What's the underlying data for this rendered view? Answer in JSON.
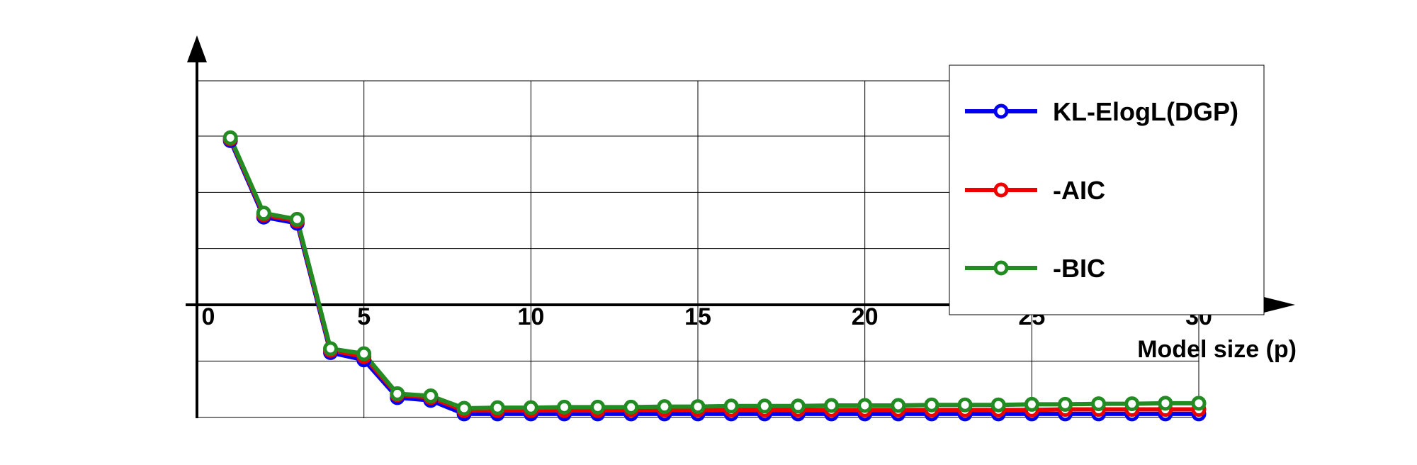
{
  "chart_data": {
    "type": "line",
    "title": "",
    "xlabel": "Model size (p)",
    "ylabel": "",
    "xlim": [
      0,
      31.5
    ],
    "ylim": [
      -2,
      4
    ],
    "x_ticks": [
      0,
      5,
      10,
      15,
      20,
      25,
      30
    ],
    "x_tick_labels": [
      "0",
      "5",
      "10",
      "15",
      "20",
      "25",
      "30"
    ],
    "grid": true,
    "legend_position": "top-right",
    "x": [
      1,
      2,
      3,
      4,
      5,
      6,
      7,
      8,
      9,
      10,
      11,
      12,
      13,
      14,
      15,
      16,
      17,
      18,
      19,
      20,
      21,
      22,
      23,
      24,
      25,
      26,
      27,
      28,
      29,
      30
    ],
    "series": [
      {
        "name": "KL-ElogL(DGP)",
        "color": "#0000ee",
        "marker": "circle",
        "values": [
          2.92,
          1.56,
          1.45,
          -0.85,
          -0.98,
          -1.65,
          -1.7,
          -1.94,
          -1.94,
          -1.94,
          -1.94,
          -1.94,
          -1.94,
          -1.94,
          -1.94,
          -1.94,
          -1.94,
          -1.94,
          -1.94,
          -1.94,
          -1.94,
          -1.94,
          -1.94,
          -1.94,
          -1.94,
          -1.94,
          -1.94,
          -1.94,
          -1.94,
          -1.94
        ]
      },
      {
        "name": "-AIC",
        "color": "#ee0000",
        "marker": "circle",
        "values": [
          2.95,
          1.6,
          1.49,
          -0.81,
          -0.92,
          -1.6,
          -1.65,
          -1.88,
          -1.88,
          -1.88,
          -1.88,
          -1.88,
          -1.87,
          -1.87,
          -1.87,
          -1.87,
          -1.87,
          -1.87,
          -1.87,
          -1.87,
          -1.87,
          -1.87,
          -1.87,
          -1.87,
          -1.87,
          -1.86,
          -1.86,
          -1.86,
          -1.86,
          -1.86
        ]
      },
      {
        "name": "-BIC",
        "color": "#228b22",
        "marker": "circle",
        "values": [
          2.97,
          1.63,
          1.52,
          -0.78,
          -0.87,
          -1.58,
          -1.62,
          -1.84,
          -1.83,
          -1.83,
          -1.82,
          -1.82,
          -1.82,
          -1.81,
          -1.81,
          -1.8,
          -1.8,
          -1.8,
          -1.79,
          -1.79,
          -1.79,
          -1.78,
          -1.78,
          -1.78,
          -1.77,
          -1.77,
          -1.76,
          -1.76,
          -1.75,
          -1.75
        ]
      }
    ]
  }
}
